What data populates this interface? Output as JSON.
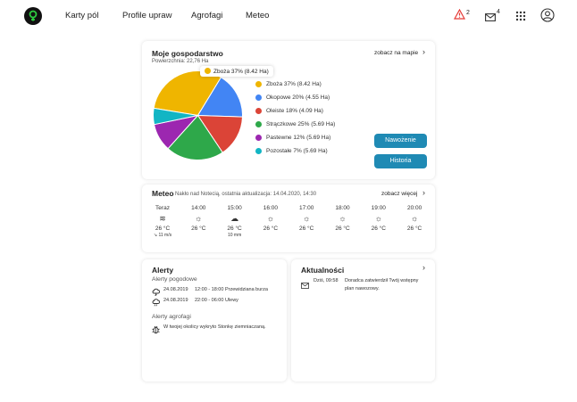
{
  "nav": {
    "links": [
      "Karty pól",
      "Profile upraw",
      "Agrofagi",
      "Meteo"
    ],
    "alerts_count": "2",
    "messages_count": "4",
    "icons": [
      "warning-icon",
      "mail-icon",
      "apps-grid-icon",
      "user-icon"
    ]
  },
  "farm": {
    "title": "Moje gospodarstwo",
    "area": "Powierzchnia: 22,76 Ha",
    "map_link": "zobacz na mapie",
    "tooltip": "Zboża  37% (8.42 Ha)",
    "legend": [
      {
        "label": "Zboża  37% (8.42 Ha)",
        "color": "#efb500"
      },
      {
        "label": "Okopowe 20% (4.55 Ha)",
        "color": "#4285f4"
      },
      {
        "label": "Oleiste 18% (4.09 Ha)",
        "color": "#db4437"
      },
      {
        "label": "Strączkowe 25% (5.69 Ha)",
        "color": "#2ea84a"
      },
      {
        "label": "Pastewne 12% (5.69 Ha)",
        "color": "#9c27b0"
      },
      {
        "label": "Pozostałe 7% (5.69 Ha)",
        "color": "#12b5c4"
      }
    ],
    "btn_fertilize": "Nawożenie",
    "btn_history": "Historia"
  },
  "chart_data": {
    "type": "pie",
    "categories": [
      "Zboża",
      "Okopowe",
      "Oleiste",
      "Strączkowe",
      "Pastewne",
      "Pozostałe"
    ],
    "values": [
      37,
      20,
      18,
      25,
      12,
      7
    ],
    "colors": [
      "#efb500",
      "#4285f4",
      "#db4437",
      "#2ea84a",
      "#9c27b0",
      "#12b5c4"
    ]
  },
  "meteo": {
    "title": "Meteo",
    "subtitle": "Nakło nad Notecią, ostatnia aktualizacja: 14.04.2020, 14:30",
    "more_link": "zobacz więcej",
    "hours": [
      {
        "time": "Teraz",
        "icon": "wind-icon",
        "temp": "26 °C",
        "extra": "11 m/s"
      },
      {
        "time": "14:00",
        "icon": "sun-icon",
        "temp": "26 °C",
        "extra": ""
      },
      {
        "time": "15:00",
        "icon": "rain-cloud-icon",
        "temp": "26 °C",
        "extra": "10 mm"
      },
      {
        "time": "16:00",
        "icon": "sun-icon",
        "temp": "26 °C",
        "extra": ""
      },
      {
        "time": "17:00",
        "icon": "sun-icon",
        "temp": "26 °C",
        "extra": ""
      },
      {
        "time": "18:00",
        "icon": "sun-icon",
        "temp": "26 °C",
        "extra": ""
      },
      {
        "time": "19:00",
        "icon": "sun-icon",
        "temp": "26 °C",
        "extra": ""
      },
      {
        "time": "20:00",
        "icon": "sun-icon",
        "temp": "26 °C",
        "extra": ""
      }
    ]
  },
  "alerts": {
    "title": "Alerty",
    "weather_title": "Alerty pogodowe",
    "weather": [
      {
        "date": "24.08.2019",
        "text": "12:00 - 18:00 Przewidziana burza"
      },
      {
        "date": "24.08.2019",
        "text": "22:00 - 06:00 Ulewy"
      }
    ],
    "agro_title": "Alerty agrofagi",
    "agro": [
      {
        "text": "W twojej okolicy wykryto Stonkę ziemniaczaną."
      }
    ]
  },
  "news": {
    "title": "Aktualności",
    "items": [
      {
        "date": "Dziś, 09:58",
        "text1": "Doradca zatwierdził Twój wstępny",
        "text2": "plan nawozowy."
      }
    ]
  }
}
